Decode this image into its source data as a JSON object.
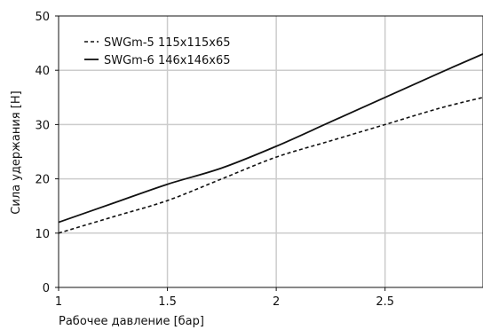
{
  "chart_data": {
    "type": "line",
    "xlabel": "Рабочее давление [бар]",
    "ylabel": "Сила удержания [Н]",
    "xlim": [
      1,
      2.95
    ],
    "ylim": [
      0,
      50
    ],
    "xticks": [
      1,
      1.5,
      2,
      2.5
    ],
    "xtick_labels": [
      "1",
      "1.5",
      "2",
      "2.5"
    ],
    "yticks": [
      0,
      10,
      20,
      30,
      40,
      50
    ],
    "ytick_labels": [
      "0",
      "10",
      "20",
      "30",
      "40",
      "50"
    ],
    "grid": true,
    "legend_position": "top-left",
    "series": [
      {
        "name": "SWGm-5 115x115x65",
        "line_style": "dashed",
        "color": "#111111",
        "x": [
          1.0,
          1.25,
          1.5,
          1.75,
          2.0,
          2.25,
          2.5,
          2.75,
          2.95
        ],
        "y": [
          10,
          13,
          16,
          20,
          24,
          27,
          30,
          33,
          35
        ]
      },
      {
        "name": "SWGm-6 146x146x65",
        "line_style": "solid",
        "color": "#111111",
        "x": [
          1.0,
          1.25,
          1.5,
          1.75,
          2.0,
          2.25,
          2.5,
          2.75,
          2.95
        ],
        "y": [
          12,
          15.5,
          19,
          22,
          26,
          30.5,
          35,
          39.5,
          43
        ]
      }
    ]
  }
}
